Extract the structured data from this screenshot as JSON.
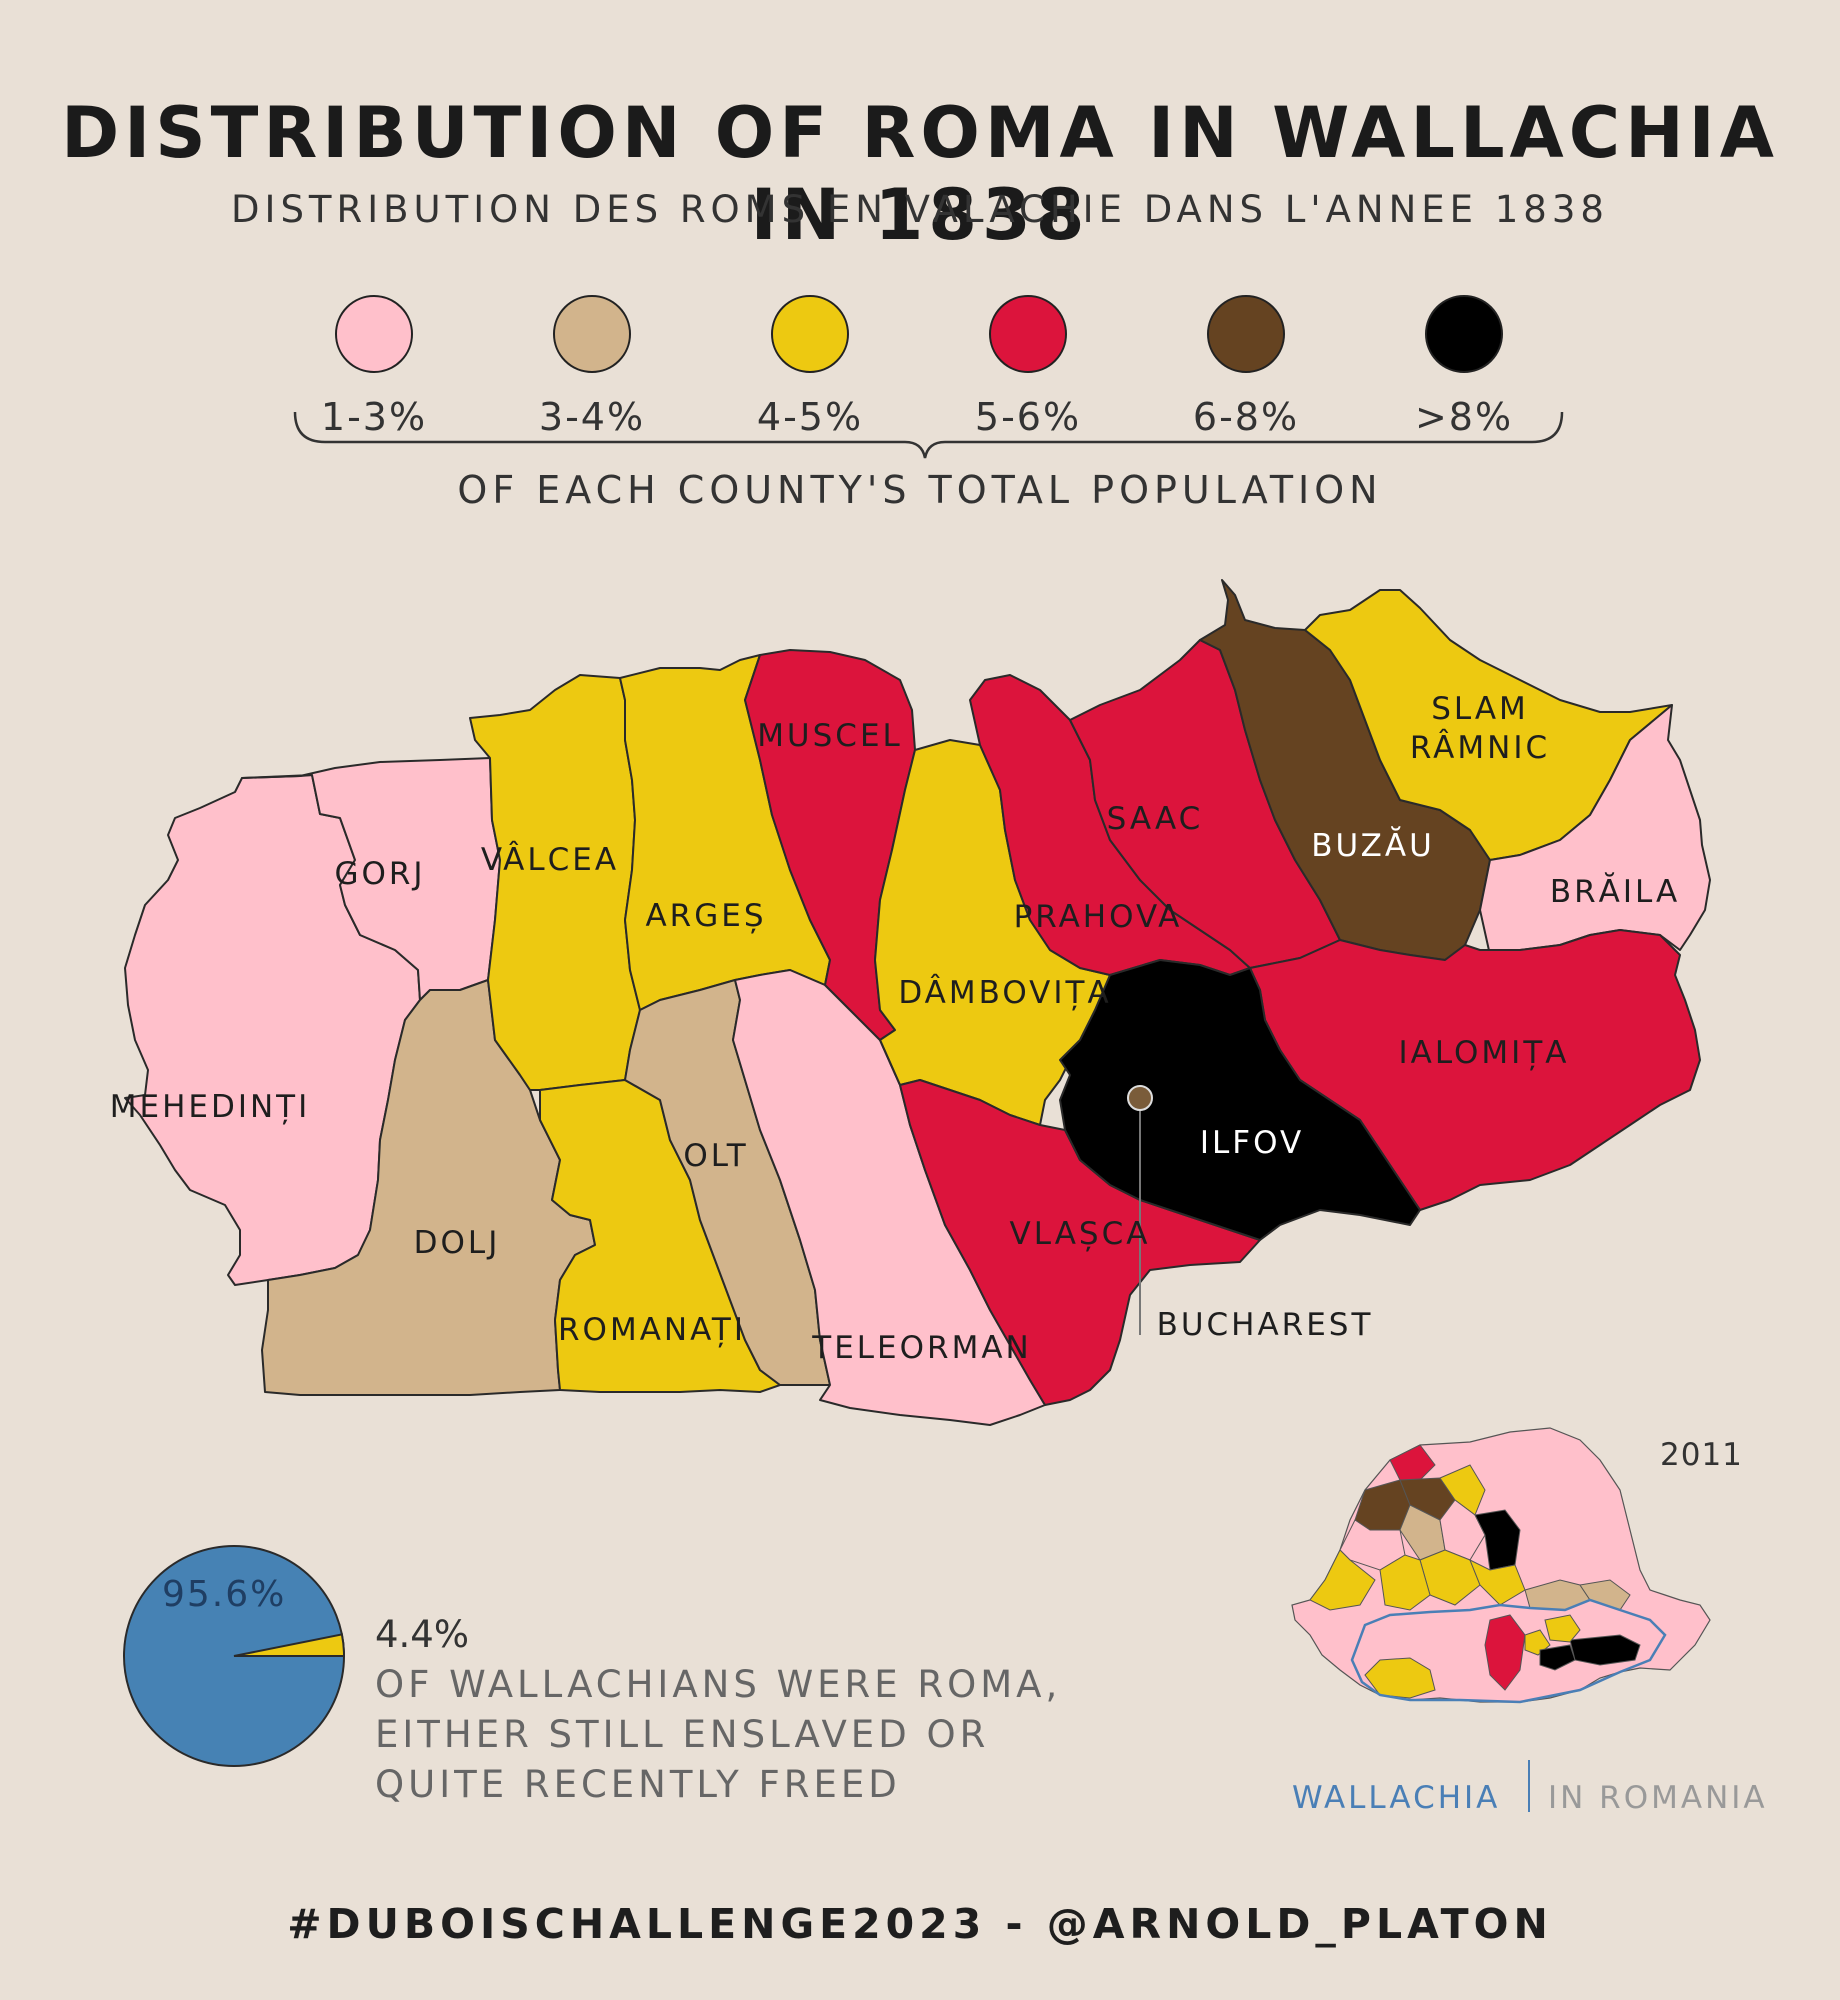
{
  "title": "DISTRIBUTION OF ROMA IN WALLACHIA IN 1838",
  "subtitle": "DISTRIBUTION DES ROMS EN VALACHIE DANS L'ANNEE 1838",
  "legend": {
    "items": [
      {
        "label": "1-3%",
        "color": "#ffc0cb"
      },
      {
        "label": "3-4%",
        "color": "#d2b48c"
      },
      {
        "label": "4-5%",
        "color": "#edc911"
      },
      {
        "label": "5-6%",
        "color": "#dc143c"
      },
      {
        "label": "6-8%",
        "color": "#654321"
      },
      {
        "label": ">8%",
        "color": "#000000"
      }
    ],
    "note": "OF EACH COUNTY'S TOTAL POPULATION"
  },
  "counties": [
    {
      "name": "MEHEDINȚI",
      "class": "1-3%"
    },
    {
      "name": "GORJ",
      "class": "1-3%"
    },
    {
      "name": "DOLJ",
      "class": "3-4%"
    },
    {
      "name": "VÂLCEA",
      "class": "4-5%"
    },
    {
      "name": "ROMANAȚI",
      "class": "4-5%"
    },
    {
      "name": "ARGEȘ",
      "class": "4-5%"
    },
    {
      "name": "OLT",
      "class": "3-4%"
    },
    {
      "name": "TELEORMAN",
      "class": "1-3%"
    },
    {
      "name": "MUSCEL",
      "class": "5-6%"
    },
    {
      "name": "DÂMBOVIȚA",
      "class": "4-5%"
    },
    {
      "name": "VLAȘCA",
      "class": "5-6%"
    },
    {
      "name": "PRAHOVA",
      "class": "5-6%"
    },
    {
      "name": "SAAC",
      "class": "5-6%"
    },
    {
      "name": "BUZĂU",
      "class": "6-8%"
    },
    {
      "name": "SLAM RÂMNIC",
      "class": "4-5%"
    },
    {
      "name": "BRĂILA",
      "class": "1-3%"
    },
    {
      "name": "IALOMIȚA",
      "class": "5-6%"
    },
    {
      "name": "ILFOV",
      "class": ">8%"
    }
  ],
  "labels": {
    "mehedinti": "MEHEDINȚI",
    "gorj": "GORJ",
    "dolj": "DOLJ",
    "valcea": "VÂLCEA",
    "romanati": "ROMANAȚI",
    "arges": "ARGEȘ",
    "olt": "OLT",
    "teleorman": "TELEORMAN",
    "muscel": "MUSCEL",
    "dambovita": "DÂMBOVIȚA",
    "vlasca": "VLAȘCA",
    "prahova": "PRAHOVA",
    "saac": "SAAC",
    "buzau": "BUZĂU",
    "slam1": "SLAM",
    "slam2": "RÂMNIC",
    "braila": "BRĂILA",
    "ialomita": "IALOMIȚA",
    "ilfov": "ILFOV",
    "bucharest": "BUCHAREST"
  },
  "pie": {
    "big_label": "95.6%",
    "small_label": "4.4%",
    "big_value": 95.6,
    "small_value": 4.4,
    "big_color": "#4682b4",
    "small_color": "#edc911",
    "caption_lines": [
      "OF WALLACHIANS WERE ROMA,",
      "EITHER STILL ENSLAVED OR",
      "QUITE RECENTLY FREED"
    ]
  },
  "inset": {
    "year": "2011",
    "wallachia_label": "WALLACHIA",
    "romania_label": "IN ROMANIA",
    "highlight_color": "#4a7fb6"
  },
  "footer": "#DUBOISCHALLENGE2023 - @ARNOLD_PLATON"
}
